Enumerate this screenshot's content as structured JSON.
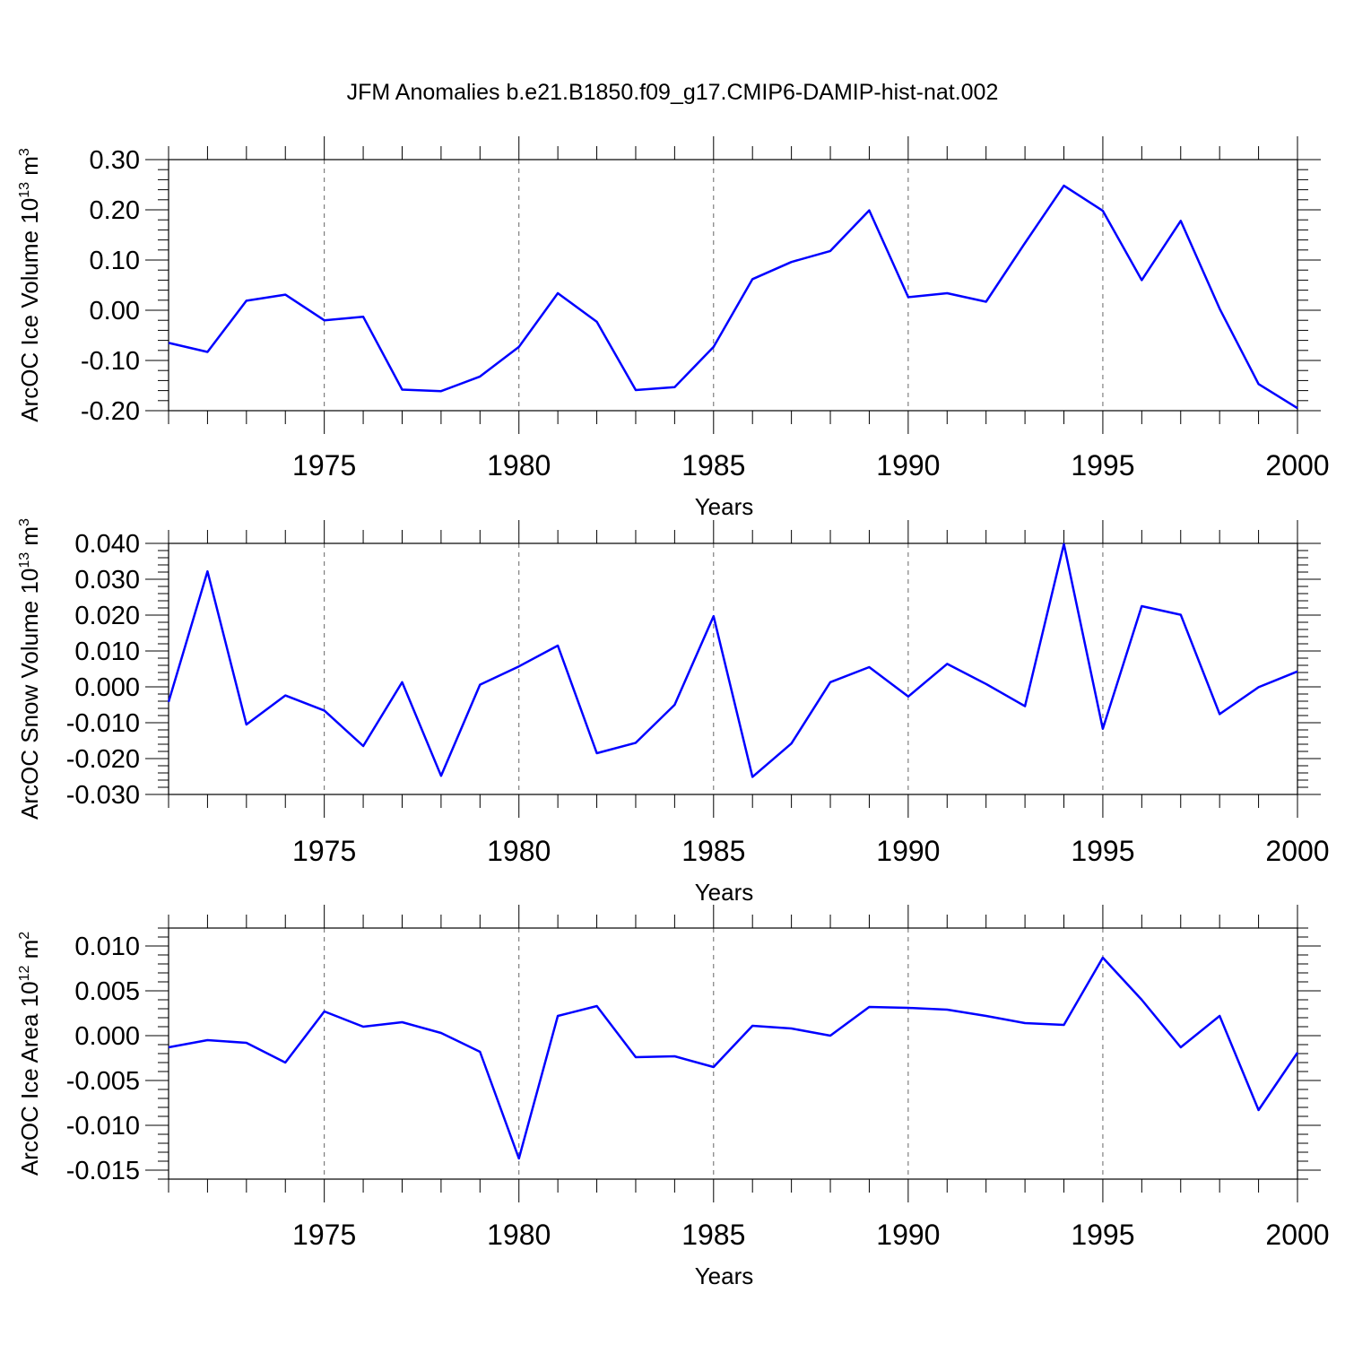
{
  "chart_data": [
    {
      "type": "line",
      "title": "JFM Anomalies b.e21.B1850.f09_g17.CMIP6-DAMIP-hist-nat.002",
      "xlabel": "Years",
      "ylabel": {
        "text": "ArcOC Ice Volume 10",
        "exp": "13",
        "unit": " m",
        "unit_exp": "3"
      },
      "xlim": [
        1971,
        2000
      ],
      "ylim": [
        -0.2,
        0.3
      ],
      "xticks": [
        1975,
        1980,
        1985,
        1990,
        1995,
        2000
      ],
      "xtick_labels": [
        "1975",
        "1980",
        "1985",
        "1990",
        "1995",
        "2000"
      ],
      "yticks": [
        0.3,
        0.2,
        0.1,
        0.0,
        -0.1,
        -0.2
      ],
      "ytick_labels": [
        "0.30",
        "0.20",
        "0.10",
        "0.00",
        "-0.10",
        "-0.20"
      ],
      "grid": "vertical dashed at major years",
      "line_color": "#0000ff",
      "series": [
        {
          "x": [
            1971,
            1972,
            1973,
            1974,
            1975,
            1976,
            1977,
            1978,
            1979,
            1980,
            1981,
            1982,
            1983,
            1984,
            1985,
            1986,
            1987,
            1988,
            1989,
            1990,
            1991,
            1992,
            1993,
            1994,
            1995,
            1996,
            1997,
            1998,
            1999,
            2000
          ],
          "values": [
            -0.065,
            -0.083,
            0.019,
            0.031,
            -0.02,
            -0.013,
            -0.158,
            -0.161,
            -0.132,
            -0.073,
            0.034,
            -0.023,
            -0.159,
            -0.153,
            -0.073,
            0.062,
            0.096,
            0.118,
            0.199,
            0.026,
            0.034,
            0.017,
            0.134,
            0.248,
            0.198,
            0.06,
            0.178,
            0.003,
            -0.147,
            -0.195
          ]
        }
      ]
    },
    {
      "type": "line",
      "xlabel": "Years",
      "ylabel": {
        "text": "ArcOC Snow Volume 10",
        "exp": "13",
        "unit": " m",
        "unit_exp": "3"
      },
      "xlim": [
        1971,
        2000
      ],
      "ylim": [
        -0.03,
        0.04
      ],
      "xticks": [
        1975,
        1980,
        1985,
        1990,
        1995,
        2000
      ],
      "xtick_labels": [
        "1975",
        "1980",
        "1985",
        "1990",
        "1995",
        "2000"
      ],
      "yticks": [
        0.04,
        0.03,
        0.02,
        0.01,
        0.0,
        -0.01,
        -0.02,
        -0.03
      ],
      "ytick_labels": [
        "0.040",
        "0.030",
        "0.020",
        "0.010",
        "0.000",
        "-0.010",
        "-0.020",
        "-0.030"
      ],
      "grid": "vertical dashed at major years",
      "line_color": "#0000ff",
      "series": [
        {
          "x": [
            1971,
            1972,
            1973,
            1974,
            1975,
            1976,
            1977,
            1978,
            1979,
            1980,
            1981,
            1982,
            1983,
            1984,
            1985,
            1986,
            1987,
            1988,
            1989,
            1990,
            1991,
            1992,
            1993,
            1994,
            1995,
            1996,
            1997,
            1998,
            1999,
            2000
          ],
          "values": [
            -0.0042,
            0.0322,
            -0.0105,
            -0.0024,
            -0.0066,
            -0.0165,
            0.0013,
            -0.0248,
            0.0006,
            0.0057,
            0.0115,
            -0.0185,
            -0.0156,
            -0.005,
            0.0197,
            -0.0251,
            -0.0158,
            0.0013,
            0.0055,
            -0.0027,
            0.0064,
            0.0008,
            -0.0054,
            0.0398,
            -0.0117,
            0.0225,
            0.0201,
            -0.0076,
            -0.0001,
            0.0043
          ]
        }
      ]
    },
    {
      "type": "line",
      "xlabel": "Years",
      "ylabel": {
        "text": "ArcOC Ice Area 10",
        "exp": "12",
        "unit": " m",
        "unit_exp": "2"
      },
      "xlim": [
        1971,
        2000
      ],
      "ylim": [
        -0.016,
        0.012
      ],
      "xticks": [
        1975,
        1980,
        1985,
        1990,
        1995,
        2000
      ],
      "xtick_labels": [
        "1975",
        "1980",
        "1985",
        "1990",
        "1995",
        "2000"
      ],
      "yticks": [
        0.01,
        0.005,
        0.0,
        -0.005,
        -0.01,
        -0.015
      ],
      "ytick_labels": [
        "0.010",
        "0.005",
        "0.000",
        "-0.005",
        "-0.010",
        "-0.015"
      ],
      "grid": "vertical dashed at major years",
      "line_color": "#0000ff",
      "series": [
        {
          "x": [
            1971,
            1972,
            1973,
            1974,
            1975,
            1976,
            1977,
            1978,
            1979,
            1980,
            1981,
            1982,
            1983,
            1984,
            1985,
            1986,
            1987,
            1988,
            1989,
            1990,
            1991,
            1992,
            1993,
            1994,
            1995,
            1996,
            1997,
            1998,
            1999,
            2000
          ],
          "values": [
            -0.0013,
            -0.0005,
            -0.0008,
            -0.003,
            0.0027,
            0.001,
            0.0015,
            0.0003,
            -0.0018,
            -0.0137,
            0.0022,
            0.0033,
            -0.0024,
            -0.0023,
            -0.0035,
            0.0011,
            0.0008,
            0.0,
            0.0032,
            0.0031,
            0.0029,
            0.0022,
            0.0014,
            0.0012,
            0.0087,
            0.004,
            -0.0013,
            0.0022,
            -0.0083,
            -0.0019
          ]
        }
      ]
    }
  ]
}
